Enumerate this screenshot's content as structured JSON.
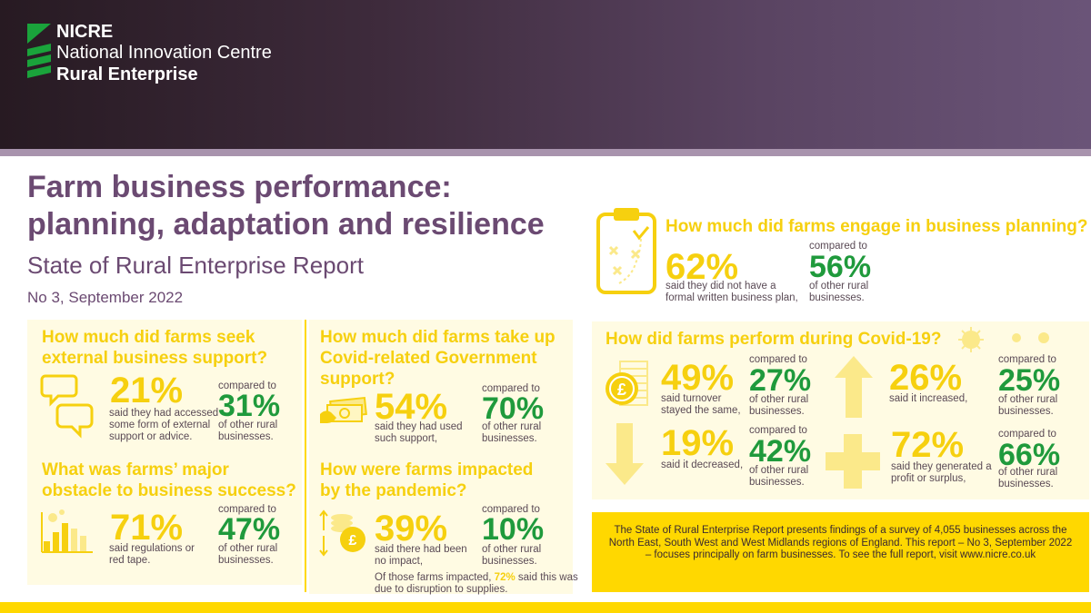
{
  "logo": {
    "abbr": "NICRE",
    "line1": "National Innovation Centre",
    "line2": "Rural Enterprise"
  },
  "title": {
    "line1": "Farm business performance:",
    "line2": "planning, adaptation and resilience",
    "subtitle": "State of Rural Enterprise Report",
    "issue": "No 3, September 2022"
  },
  "colors": {
    "purple": "#6b4a72",
    "yellow": "#f6d00f",
    "green": "#1f9a3c",
    "panel": "#fffbe3",
    "header": "#3e2b3c"
  },
  "support": {
    "question_l1": "How much did farms seek",
    "question_l2": "external business support?",
    "pct": "21%",
    "desc_l1": "said they had accessed",
    "desc_l2": "some form of external",
    "desc_l3": "support or advice.",
    "compared": "compared to",
    "pct_other": "31%",
    "other_l1": "of other rural",
    "other_l2": "businesses."
  },
  "obstacle": {
    "question_l1": "What was farms’ major",
    "question_l2": "obstacle to business success?",
    "pct": "71%",
    "desc_l1": "said regulations or",
    "desc_l2": "red tape.",
    "compared": "compared to",
    "pct_other": "47%",
    "other_l1": "of other rural",
    "other_l2": "businesses."
  },
  "covid_support": {
    "question_l1": "How much did farms take up",
    "question_l2": "Covid-related Government",
    "question_l3": "support?",
    "pct": "54%",
    "desc_l1": "said they had used",
    "desc_l2": "such support,",
    "compared": "compared to",
    "pct_other": "70%",
    "other_l1": "of other rural",
    "other_l2": "businesses."
  },
  "pandemic": {
    "question_l1": "How were farms impacted",
    "question_l2": "by the pandemic?",
    "pct": "39%",
    "desc_l1": "said there had been",
    "desc_l2": "no impact,",
    "compared": "compared to",
    "pct_other": "10%",
    "other_l1": "of other rural",
    "other_l2": "businesses.",
    "note_pre": "Of those farms impacted,",
    "note_pct": "72%",
    "note_post": "said this was",
    "note_l2": "due to disruption to supplies."
  },
  "planning": {
    "question": "How much did farms engage in business planning?",
    "pct": "62%",
    "desc_l1": "said they did not have a",
    "desc_l2": "formal written business plan,",
    "compared": "compared to",
    "pct_other": "56%",
    "other_l1": "of other rural",
    "other_l2": "businesses."
  },
  "covid_perf": {
    "question": "How did farms perform during Covid-19?",
    "same": {
      "pct": "49%",
      "desc_l1": "said turnover",
      "desc_l2": "stayed the same,",
      "compared": "compared to",
      "pct_other": "27%",
      "other_l1": "of other rural",
      "other_l2": "businesses."
    },
    "increased": {
      "pct": "26%",
      "desc_l1": "said it increased,",
      "compared": "compared to",
      "pct_other": "25%",
      "other_l1": "of other rural",
      "other_l2": "businesses."
    },
    "decreased": {
      "pct": "19%",
      "desc_l1": "said it decreased,",
      "compared": "compared to",
      "pct_other": "42%",
      "other_l1": "of other rural",
      "other_l2": "businesses."
    },
    "profit": {
      "pct": "72%",
      "desc_l1": "said they generated a",
      "desc_l2": "profit or surplus,",
      "compared": "compared to",
      "pct_other": "66%",
      "other_l1": "of other rural",
      "other_l2": "businesses."
    }
  },
  "info": {
    "text": "The State of Rural Enterprise Report presents findings of a survey of 4,055 businesses across the North East, South West and West Midlands regions of England. This report – No 3, September 2022 – focuses principally on farm businesses. To see the full report, visit www.nicre.co.uk"
  },
  "icons": [
    "nicre-logo-icon",
    "speech-bubbles-icon",
    "bar-chart-icon",
    "cash-icon",
    "coin-stack-icon",
    "clipboard-icon",
    "coin-ledger-icon",
    "arrow-up-icon",
    "arrow-down-icon",
    "plus-icon",
    "virus-icon"
  ]
}
